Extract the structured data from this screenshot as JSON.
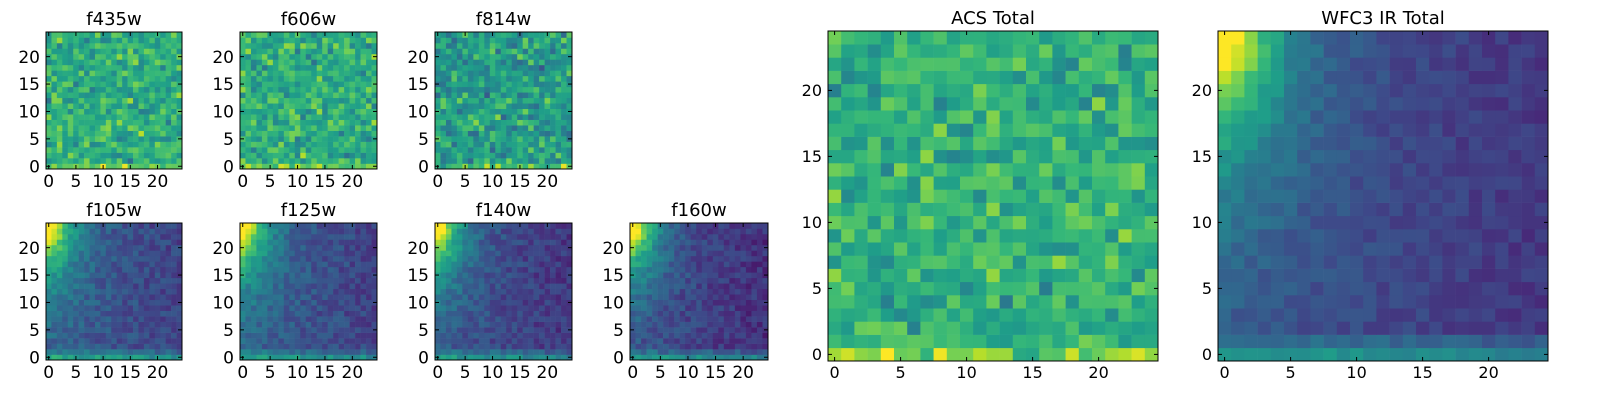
{
  "colormap": "viridis",
  "colors": {
    "low": "#440154",
    "mid": "#21918c",
    "high": "#fde725",
    "frame": "#000000",
    "background": "#ffffff"
  },
  "chart_data": [
    {
      "type": "heatmap",
      "title": "f435w",
      "image_size": [
        25,
        25
      ],
      "origin": "lower",
      "xlim": [
        0,
        24
      ],
      "ylim": [
        0,
        24
      ],
      "xticks": [
        0,
        5,
        10,
        15,
        20
      ],
      "yticks": [
        0,
        5,
        10,
        15,
        20
      ],
      "pattern": "noise",
      "mean": 0.62,
      "spread": 0.22,
      "seed": 11
    },
    {
      "type": "heatmap",
      "title": "f606w",
      "image_size": [
        25,
        25
      ],
      "origin": "lower",
      "xlim": [
        0,
        24
      ],
      "ylim": [
        0,
        24
      ],
      "xticks": [
        0,
        5,
        10,
        15,
        20
      ],
      "yticks": [
        0,
        5,
        10,
        15,
        20
      ],
      "pattern": "noise",
      "mean": 0.62,
      "spread": 0.22,
      "seed": 23
    },
    {
      "type": "heatmap",
      "title": "f814w",
      "image_size": [
        25,
        25
      ],
      "origin": "lower",
      "xlim": [
        0,
        24
      ],
      "ylim": [
        0,
        24
      ],
      "xticks": [
        0,
        5,
        10,
        15,
        20
      ],
      "yticks": [
        0,
        5,
        10,
        15,
        20
      ],
      "pattern": "noise",
      "mean": 0.55,
      "spread": 0.24,
      "seed": 37
    },
    {
      "type": "heatmap",
      "title": "f105w",
      "image_size": [
        25,
        25
      ],
      "origin": "lower",
      "xlim": [
        0,
        24
      ],
      "ylim": [
        0,
        24
      ],
      "xticks": [
        0,
        5,
        10,
        15,
        20
      ],
      "yticks": [
        0,
        5,
        10,
        15,
        20
      ],
      "pattern": "gradient",
      "base": 0.2,
      "corner": 0.8,
      "noise": 0.08,
      "seed": 41
    },
    {
      "type": "heatmap",
      "title": "f125w",
      "image_size": [
        25,
        25
      ],
      "origin": "lower",
      "xlim": [
        0,
        24
      ],
      "ylim": [
        0,
        24
      ],
      "xticks": [
        0,
        5,
        10,
        15,
        20
      ],
      "yticks": [
        0,
        5,
        10,
        15,
        20
      ],
      "pattern": "gradient",
      "base": 0.2,
      "corner": 0.8,
      "noise": 0.08,
      "seed": 53
    },
    {
      "type": "heatmap",
      "title": "f140w",
      "image_size": [
        25,
        25
      ],
      "origin": "lower",
      "xlim": [
        0,
        24
      ],
      "ylim": [
        0,
        24
      ],
      "xticks": [
        0,
        5,
        10,
        15,
        20
      ],
      "yticks": [
        0,
        5,
        10,
        15,
        20
      ],
      "pattern": "gradient",
      "base": 0.16,
      "corner": 0.84,
      "noise": 0.08,
      "seed": 61
    },
    {
      "type": "heatmap",
      "title": "f160w",
      "image_size": [
        25,
        25
      ],
      "origin": "lower",
      "xlim": [
        0,
        24
      ],
      "ylim": [
        0,
        24
      ],
      "xticks": [
        0,
        5,
        10,
        15,
        20
      ],
      "yticks": [
        0,
        5,
        10,
        15,
        20
      ],
      "pattern": "gradient",
      "base": 0.14,
      "corner": 0.86,
      "noise": 0.08,
      "seed": 71
    },
    {
      "type": "heatmap",
      "title": "ACS Total",
      "image_size": [
        25,
        25
      ],
      "origin": "lower",
      "xlim": [
        0,
        24
      ],
      "ylim": [
        0,
        24
      ],
      "xticks": [
        0,
        5,
        10,
        15,
        20
      ],
      "yticks": [
        0,
        5,
        10,
        15,
        20
      ],
      "pattern": "noise",
      "mean": 0.64,
      "spread": 0.2,
      "seed": 83
    },
    {
      "type": "heatmap",
      "title": "WFC3 IR Total",
      "image_size": [
        25,
        25
      ],
      "origin": "lower",
      "xlim": [
        0,
        24
      ],
      "ylim": [
        0,
        24
      ],
      "xticks": [
        0,
        5,
        10,
        15,
        20
      ],
      "yticks": [
        0,
        5,
        10,
        15,
        20
      ],
      "pattern": "gradient",
      "base": 0.16,
      "corner": 0.84,
      "noise": 0.05,
      "seed": 97
    }
  ]
}
